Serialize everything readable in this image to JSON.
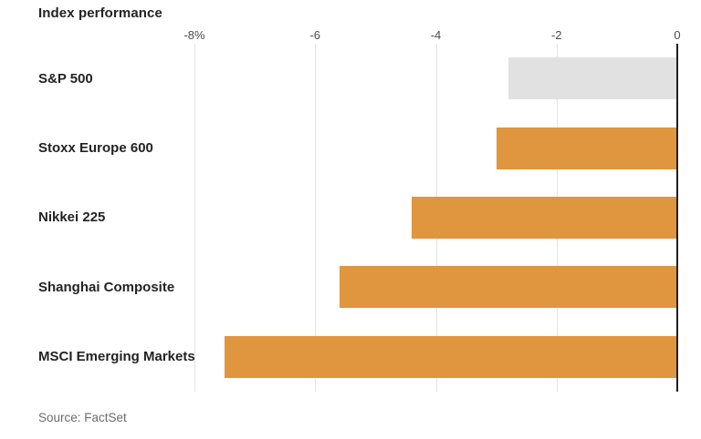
{
  "chart_data": {
    "type": "bar",
    "orientation": "horizontal",
    "title": "Index performance",
    "source": "Source: FactSet",
    "categories": [
      "S&P 500",
      "Stoxx Europe 600",
      "Nikkei 225",
      "Shanghai Composite",
      "MSCI Emerging Markets"
    ],
    "values": [
      -2.8,
      -3.0,
      -4.4,
      -5.6,
      -7.5
    ],
    "unit": "%",
    "bar_colors": [
      "#e1e1e1",
      "#e0953f",
      "#e0953f",
      "#e0953f",
      "#e0953f"
    ],
    "xlim": [
      -8,
      0
    ],
    "ticks": [
      {
        "value": -8,
        "label": "-8%"
      },
      {
        "value": -6,
        "label": "-6"
      },
      {
        "value": -4,
        "label": "-4"
      },
      {
        "value": -2,
        "label": "-2"
      },
      {
        "value": 0,
        "label": "0"
      }
    ],
    "grid": true,
    "legend": false
  },
  "colors": {
    "accent_orange": "#e0953f",
    "muted_gray_bar": "#e1e1e1",
    "gridline": "#e4e4e4",
    "zero_axis": "#1f1f1f",
    "title_text": "#232323",
    "tick_text": "#4c4c4c",
    "source_text": "#6b6b6b"
  }
}
